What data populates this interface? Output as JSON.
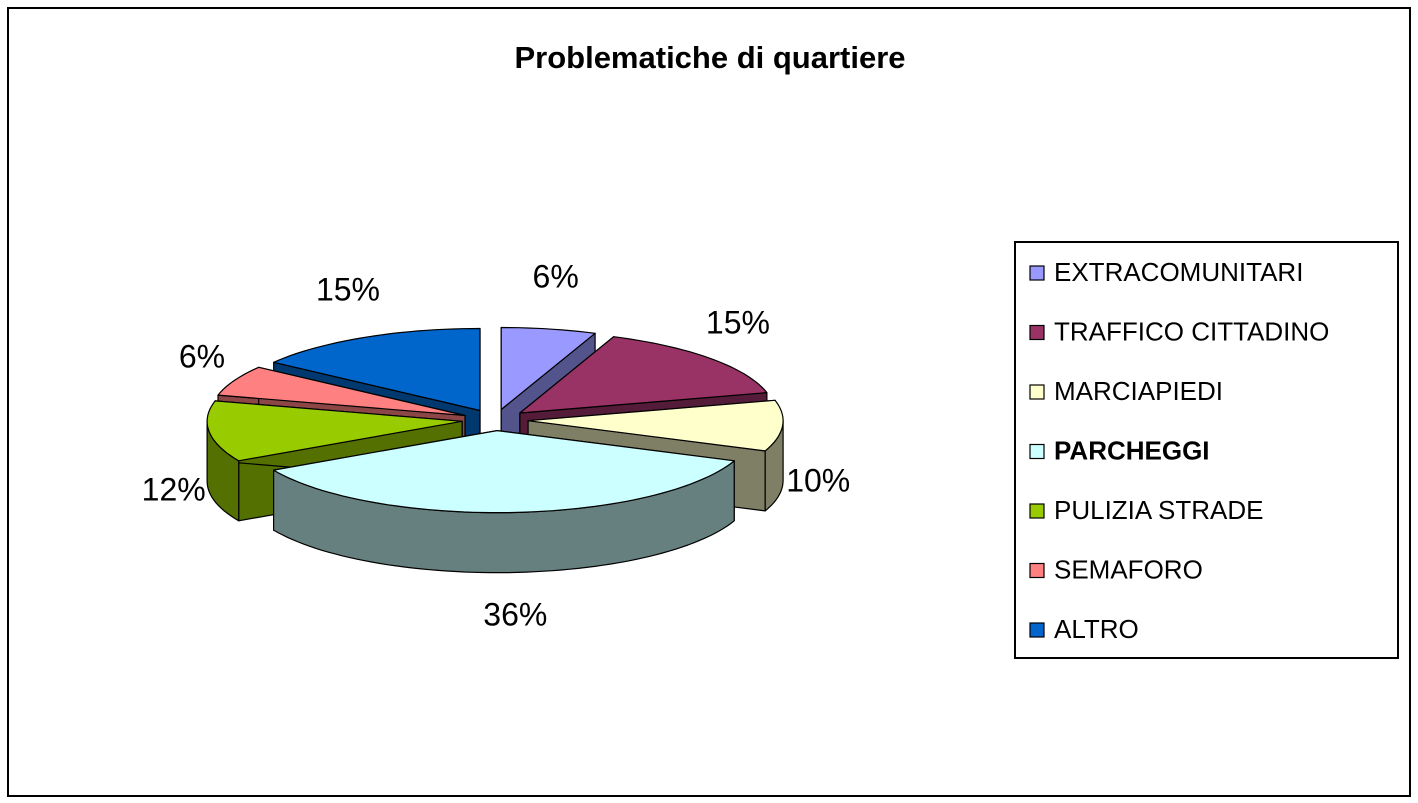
{
  "chart_data": {
    "type": "pie",
    "title": "Problematiche di quartiere",
    "categories": [
      "EXTRACOMUNITARI",
      "TRAFFICO CITTADINO",
      "MARCIAPIEDI",
      "PARCHEGGI",
      "PULIZIA STRADE",
      "SEMAFORO",
      "ALTRO"
    ],
    "values": [
      6,
      15,
      10,
      36,
      12,
      6,
      15
    ],
    "value_labels": [
      "6%",
      "15%",
      "10%",
      "36%",
      "12%",
      "6%",
      "15%"
    ],
    "colors": [
      "#9999ff",
      "#993366",
      "#ffffcc",
      "#ccffff",
      "#99cc00",
      "#ff8080",
      "#0066cc"
    ],
    "legend": "right"
  }
}
